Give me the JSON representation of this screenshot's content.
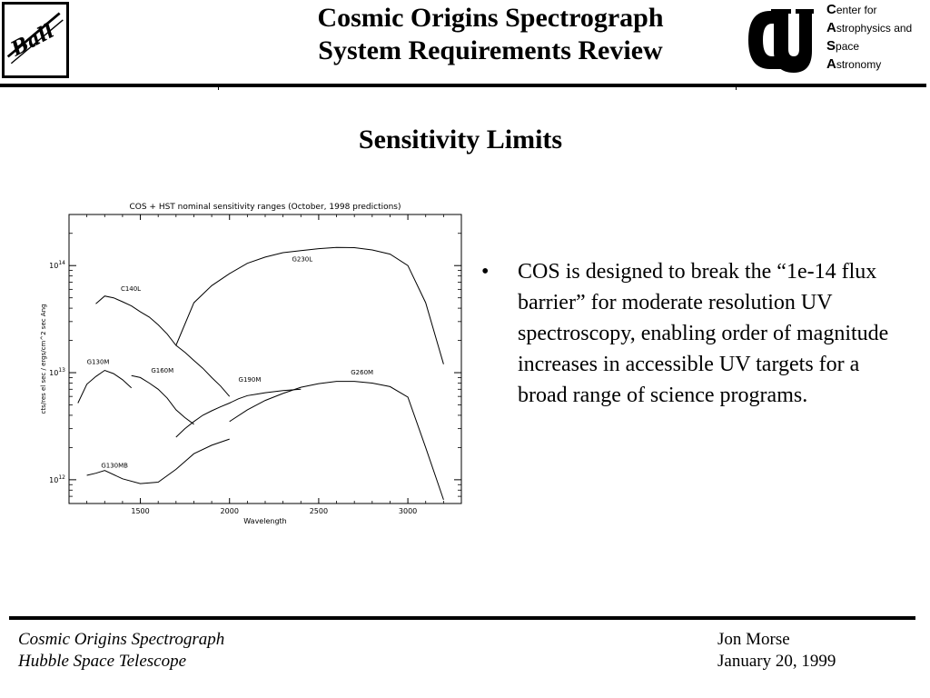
{
  "header": {
    "title_line1": "Cosmic Origins Spectrograph",
    "title_line2": "System Requirements Review",
    "left_logo": "Ball",
    "right_logo": "CU",
    "casa_lines": [
      {
        "cap": "C",
        "rest": "enter for"
      },
      {
        "cap": "A",
        "rest": "strophysics and"
      },
      {
        "cap": "S",
        "rest": "pace"
      },
      {
        "cap": "A",
        "rest": "stronomy"
      }
    ]
  },
  "slide": {
    "title": "Sensitivity Limits",
    "bullets": [
      "COS is designed to break the “1e-14 flux barrier” for moderate resolution UV spectroscopy, enabling order of magnitude increases in accessible UV targets for a broad range of science programs."
    ],
    "bullet_marker": "•"
  },
  "footer": {
    "left_line1": "Cosmic Origins Spectrograph",
    "left_line2": "Hubble Space Telescope",
    "right_line1": "Jon Morse",
    "right_line2": "January 20, 1999"
  },
  "chart_data": {
    "type": "line",
    "title": "COS + HST nominal sensitivity ranges (October, 1998 predictions)",
    "xlabel": "Wavelength",
    "ylabel": "cts/res el sec / ergs/cm^2 sec Ang",
    "xlim": [
      1100,
      3300
    ],
    "ylim": [
      600000000000.0,
      300000000000000.0
    ],
    "yscale": "log",
    "x_ticks": [
      1500,
      2000,
      2500,
      3000
    ],
    "y_ticks": [
      {
        "value": 1000000000000.0,
        "base": "10",
        "exp": "12"
      },
      {
        "value": 10000000000000.0,
        "base": "10",
        "exp": "13"
      },
      {
        "value": 100000000000000.0,
        "base": "10",
        "exp": "14"
      }
    ],
    "grid": false,
    "series": [
      {
        "name": "G130M",
        "label_at": [
          1200,
          12000000000000.0
        ],
        "x": [
          1150,
          1200,
          1250,
          1300,
          1350,
          1400,
          1450
        ],
        "y": [
          5200000000000.0,
          7800000000000.0,
          9200000000000.0,
          10500000000000.0,
          9800000000000.0,
          8600000000000.0,
          7200000000000.0
        ]
      },
      {
        "name": "C140L",
        "label_at": [
          1390,
          58000000000000.0
        ],
        "x": [
          1250,
          1300,
          1350,
          1400,
          1450,
          1500,
          1550,
          1600,
          1650,
          1700,
          1750,
          1800,
          1850,
          1900,
          1950,
          2000
        ],
        "y": [
          44000000000000.0,
          52000000000000.0,
          50000000000000.0,
          46000000000000.0,
          42000000000000.0,
          37000000000000.0,
          33000000000000.0,
          28000000000000.0,
          23000000000000.0,
          18000000000000.0,
          15500000000000.0,
          13000000000000.0,
          11000000000000.0,
          9000000000000.0,
          7500000000000.0,
          6000000000000.0
        ]
      },
      {
        "name": "G160M",
        "label_at": [
          1560,
          10000000000000.0
        ],
        "x": [
          1450,
          1500,
          1550,
          1600,
          1650,
          1700,
          1750,
          1800
        ],
        "y": [
          9400000000000.0,
          9000000000000.0,
          8000000000000.0,
          7000000000000.0,
          5800000000000.0,
          4500000000000.0,
          3800000000000.0,
          3300000000000.0
        ]
      },
      {
        "name": "G230L",
        "label_at": [
          2350,
          110000000000000.0
        ],
        "x": [
          1700,
          1800,
          1900,
          2000,
          2100,
          2200,
          2300,
          2400,
          2500,
          2600,
          2700,
          2800,
          2900,
          3000,
          3100,
          3200
        ],
        "y": [
          18000000000000.0,
          45000000000000.0,
          65000000000000.0,
          84000000000000.0,
          105000000000000.0,
          120000000000000.0,
          132000000000000.0,
          138000000000000.0,
          144000000000000.0,
          148000000000000.0,
          147000000000000.0,
          140000000000000.0,
          128000000000000.0,
          100000000000000.0,
          45000000000000.0,
          12000000000000.0
        ]
      },
      {
        "name": "G190M",
        "label_at": [
          2050,
          8200000000000.0
        ],
        "x": [
          1700,
          1750,
          1800,
          1850,
          1900,
          1950,
          2000,
          2050,
          2100,
          2150,
          2200,
          2300,
          2400
        ],
        "y": [
          2500000000000.0,
          3000000000000.0,
          3500000000000.0,
          4000000000000.0,
          4400000000000.0,
          4800000000000.0,
          5200000000000.0,
          5700000000000.0,
          6100000000000.0,
          6300000000000.0,
          6500000000000.0,
          6800000000000.0,
          7000000000000.0
        ]
      },
      {
        "name": "G260M",
        "label_at": [
          2680,
          9600000000000.0
        ],
        "x": [
          2000,
          2100,
          2200,
          2300,
          2400,
          2500,
          2600,
          2700,
          2800,
          2900,
          3000,
          3100,
          3200
        ],
        "y": [
          3500000000000.0,
          4500000000000.0,
          5500000000000.0,
          6400000000000.0,
          7300000000000.0,
          7900000000000.0,
          8300000000000.0,
          8300000000000.0,
          8000000000000.0,
          7400000000000.0,
          5900000000000.0,
          2000000000000.0,
          650000000000.0
        ]
      },
      {
        "name": "G130MB",
        "label_at": [
          1280,
          1300000000000.0
        ],
        "x": [
          1200,
          1250,
          1300,
          1400,
          1500,
          1600,
          1700,
          1800,
          1900,
          2000
        ],
        "y": [
          1100000000000.0,
          1150000000000.0,
          1220000000000.0,
          1020000000000.0,
          920000000000.0,
          950000000000.0,
          1250000000000.0,
          1750000000000.0,
          2100000000000.0,
          2400000000000.0
        ]
      }
    ]
  }
}
